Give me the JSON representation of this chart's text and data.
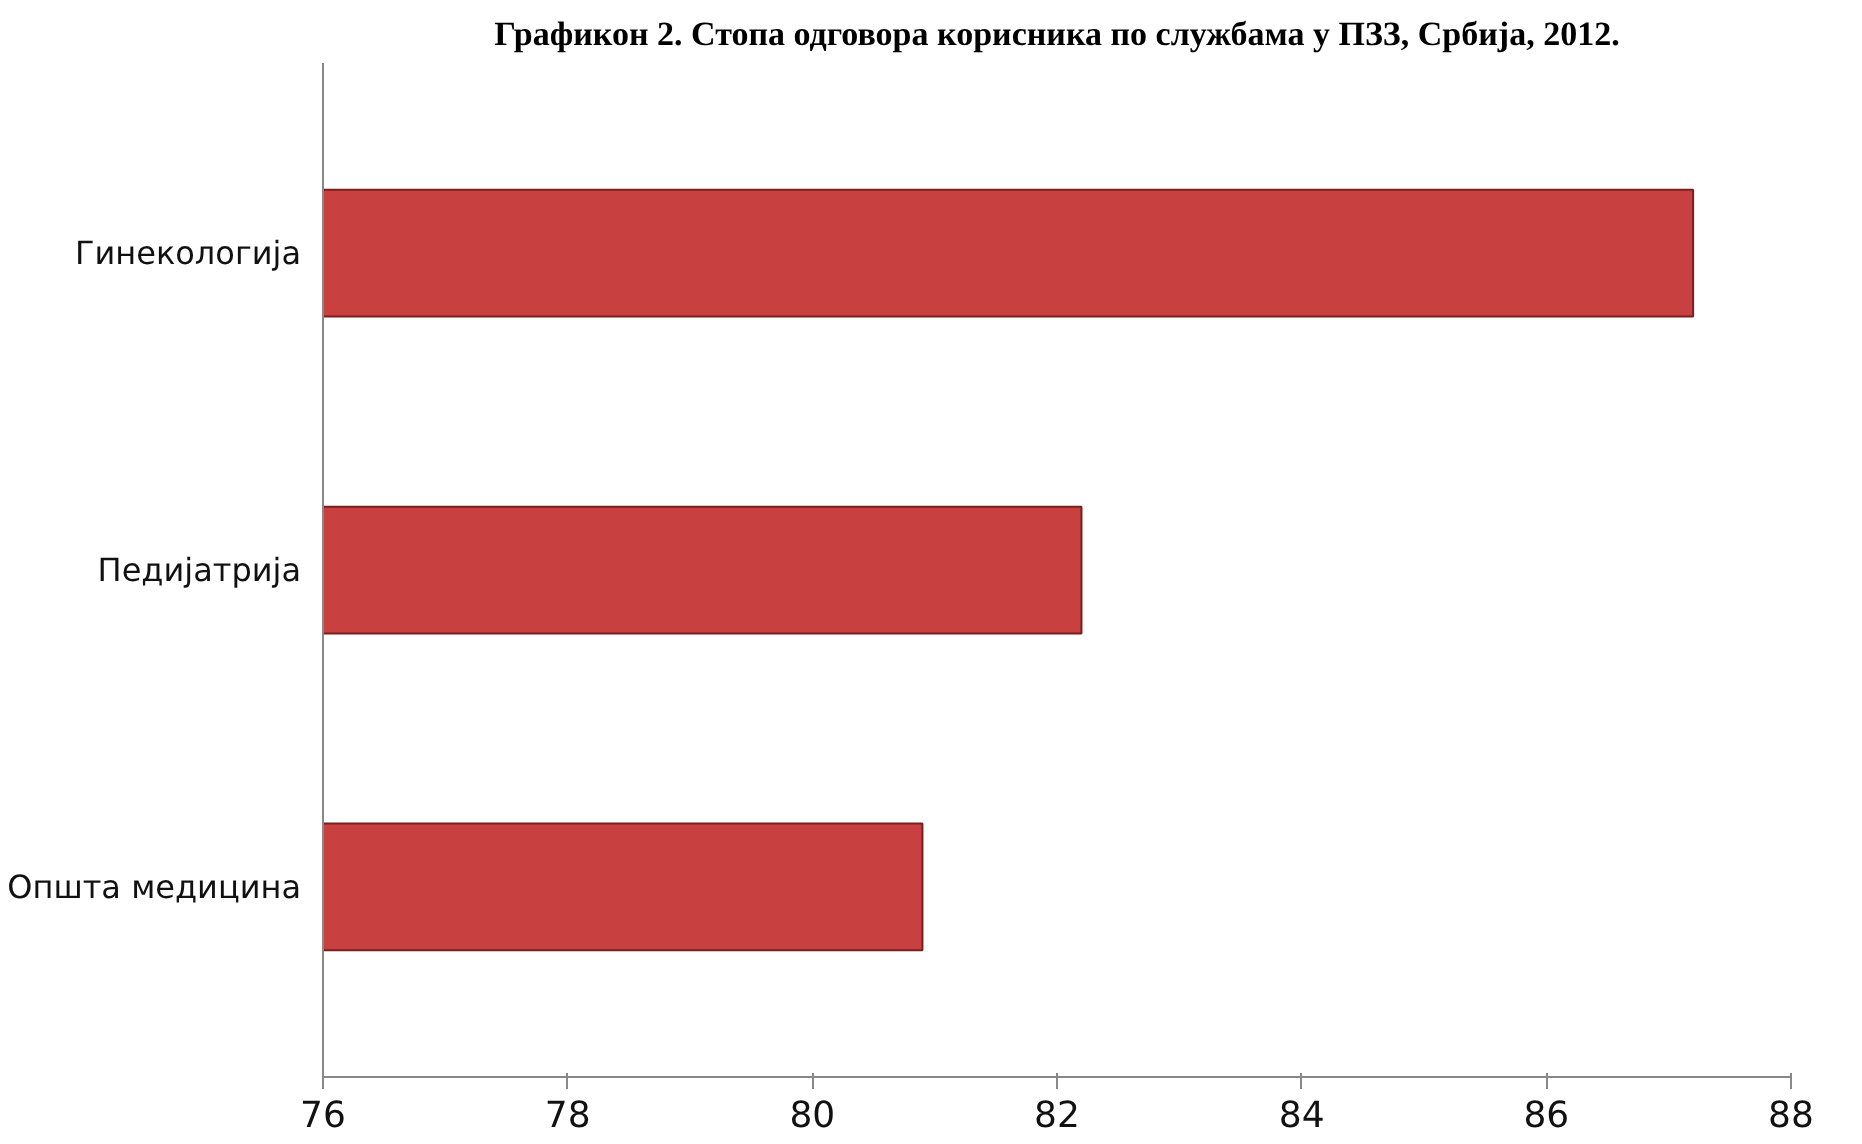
{
  "chart_data": {
    "type": "bar",
    "orientation": "horizontal",
    "title": "Графикон 2. Стопа одговора корисника по службама у ПЗЗ, Србија, 2012.",
    "categories": [
      "Гинекологија",
      "Педијатрија",
      "Општа медицина"
    ],
    "values": [
      87.2,
      82.2,
      80.9
    ],
    "color": "#c8403f",
    "xlim": [
      76,
      88
    ],
    "xticks": [
      76,
      78,
      80,
      82,
      84,
      86,
      88
    ],
    "grid": false
  }
}
